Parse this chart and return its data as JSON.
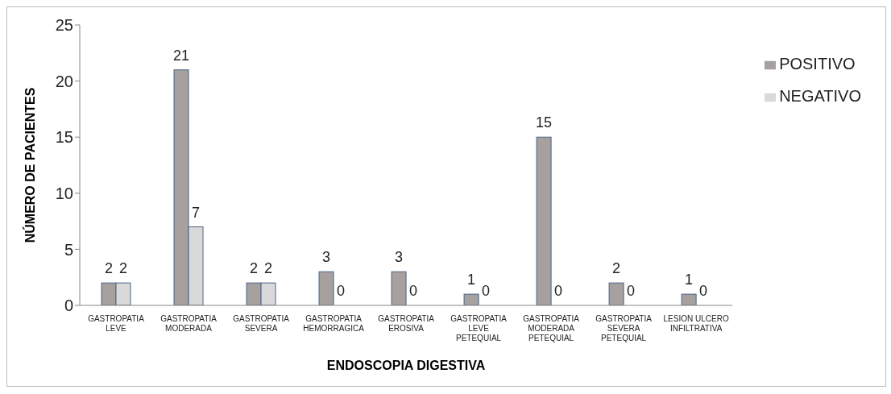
{
  "chart_data": {
    "type": "bar",
    "xlabel": "ENDOSCOPIA DIGESTIVA",
    "ylabel": "NÚMERO DE PACIENTES",
    "categories": [
      "GASTROPATIA\nLEVE",
      "GASTROPATIA\nMODERADA",
      "GASTROPATIA\nSEVERA",
      "GASTROPATIA\nHEMORRAGICA",
      "GASTROPATIA\nEROSIVA",
      "GASTROPATIA\nLEVE\nPETEQUIAL",
      "GASTROPATIA\nMODERADA\nPETEQUIAL",
      "GASTROPATIA\nSEVERA\nPETEQUIAL",
      "LESION ULCERO\nINFILTRATIVA"
    ],
    "series": [
      {
        "name": "POSITIVO",
        "color": "#a6a09e",
        "values": [
          2,
          21,
          2,
          3,
          3,
          1,
          15,
          2,
          1
        ]
      },
      {
        "name": "NEGATIVO",
        "color": "#d9d9d9",
        "values": [
          2,
          7,
          2,
          0,
          0,
          0,
          0,
          0,
          0
        ]
      }
    ],
    "ylim": [
      0,
      25
    ],
    "yticks": [
      0,
      5,
      10,
      15,
      20,
      25
    ],
    "grid": false,
    "legend": "top right",
    "data_labels": true
  }
}
